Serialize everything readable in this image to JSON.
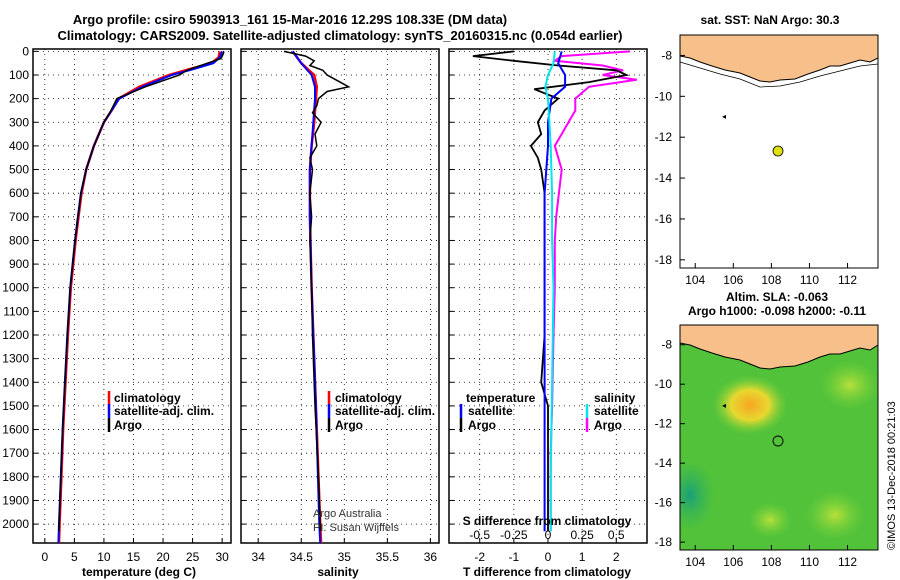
{
  "title": {
    "line1": "Argo profile: csiro 5903913_161 15-Mar-2016 12.29S 108.33E (DM data)",
    "line2": "Climatology: CARS2009. Satellite-adjusted climatology: synTS_20160315.nc (0.054d earlier)"
  },
  "colors": {
    "climatology": "#ff0000",
    "satellite": "#0000ff",
    "argo": "#000000",
    "sat_salinity": "#00e5ee",
    "argo_salinity": "#ff00ff",
    "land": "#f7c08a"
  },
  "depth_ticks": [
    0,
    100,
    200,
    300,
    400,
    500,
    600,
    700,
    800,
    900,
    1000,
    1100,
    1200,
    1300,
    1400,
    1500,
    1600,
    1700,
    1800,
    1900,
    2000
  ],
  "temp_panel": {
    "xlabel": "temperature (deg C)",
    "xticks": [
      0,
      5,
      10,
      15,
      20,
      25,
      30
    ],
    "legend": [
      "climatology",
      "satellite-adj. clim.",
      "Argo"
    ]
  },
  "sal_panel": {
    "xlabel": "salinity",
    "xticks": [
      "34",
      "34.5",
      "35",
      "35.5",
      "36"
    ],
    "legend": [
      "climatology",
      "satellite-adj. clim.",
      "Argo"
    ],
    "credit1": "Argo Australia",
    "credit2": "PI: Susan Wijffels"
  },
  "diff_panel": {
    "xlabel": "T difference from climatology",
    "xticks": [
      "-2",
      "-1",
      "0",
      "1",
      "2"
    ],
    "s_label": "S difference from climatology",
    "s_ticks": [
      "-0.5",
      "-0.25",
      "0",
      "0.25",
      "0.5"
    ],
    "legend_t_title": "temperature",
    "legend_s_title": "salinity",
    "legend_t": [
      "satellite",
      "Argo"
    ],
    "legend_s": [
      "satellite",
      "Argo"
    ]
  },
  "map1": {
    "title": "sat. SST: NaN Argo: 30.3",
    "yticks": [
      "-8",
      "-10",
      "-12",
      "-14",
      "-16",
      "-18"
    ],
    "xticks": [
      "104",
      "106",
      "108",
      "110",
      "112"
    ]
  },
  "map2": {
    "title1": "Altim. SLA: -0.063",
    "title2": "Argo h1000: -0.098 h2000: -0.11",
    "yticks": [
      "-8",
      "-10",
      "-12",
      "-14",
      "-16",
      "-18"
    ],
    "xticks": [
      "104",
      "106",
      "108",
      "110",
      "112"
    ]
  },
  "side_stamp": "©IMOS 13-Dec-2018 00:21:03",
  "chart_data": [
    {
      "type": "line",
      "name": "temperature profile",
      "x_unit": "deg C",
      "ylim": [
        2080,
        -10
      ],
      "xlim": [
        -2,
        31.5
      ],
      "series": [
        {
          "name": "climatology",
          "depth": [
            0,
            25,
            50,
            75,
            100,
            150,
            200,
            250,
            300,
            400,
            500,
            600,
            700,
            800,
            900,
            1000,
            1200,
            1400,
            1600,
            1800,
            2000,
            2080
          ],
          "values": [
            29.6,
            29.4,
            28.2,
            24.5,
            21.0,
            16.0,
            12.5,
            11.3,
            10.0,
            8.3,
            7.0,
            6.2,
            5.7,
            5.2,
            4.8,
            4.4,
            3.9,
            3.5,
            3.1,
            2.8,
            2.5,
            2.4
          ]
        },
        {
          "name": "satellite-adj. clim.",
          "depth": [
            0,
            25,
            50,
            75,
            100,
            150,
            200,
            250,
            300,
            400,
            500,
            600,
            700,
            800,
            900,
            1000,
            1200,
            1400,
            1600,
            1800,
            2000,
            2080
          ],
          "values": [
            30.0,
            29.6,
            28.5,
            25.2,
            21.5,
            16.5,
            12.6,
            11.3,
            10.0,
            8.3,
            7.0,
            6.1,
            5.6,
            5.1,
            4.7,
            4.3,
            3.8,
            3.4,
            3.0,
            2.7,
            2.4,
            2.3
          ]
        },
        {
          "name": "Argo",
          "depth": [
            0,
            10,
            30,
            50,
            80,
            100,
            150,
            200,
            250,
            300,
            400,
            500,
            600,
            700,
            800,
            900,
            1000,
            1200,
            1400,
            1600,
            1800,
            2000,
            2030
          ],
          "values": [
            30.3,
            30.2,
            29.8,
            27.5,
            24.0,
            22.8,
            17.0,
            12.2,
            11.2,
            10.0,
            8.3,
            7.0,
            6.1,
            5.6,
            5.1,
            4.7,
            4.3,
            3.8,
            3.4,
            3.0,
            2.7,
            2.4,
            2.4
          ]
        }
      ]
    },
    {
      "type": "line",
      "name": "salinity profile",
      "ylim": [
        2080,
        -10
      ],
      "xlim": [
        33.8,
        36.1
      ],
      "series": [
        {
          "name": "climatology",
          "depth": [
            0,
            50,
            100,
            150,
            200,
            300,
            400,
            500,
            700,
            1000,
            1500,
            2000,
            2080
          ],
          "values": [
            34.4,
            34.5,
            34.65,
            34.68,
            34.67,
            34.65,
            34.62,
            34.6,
            34.6,
            34.62,
            34.67,
            34.72,
            34.73
          ]
        },
        {
          "name": "satellite-adj. clim.",
          "depth": [
            0,
            50,
            100,
            150,
            200,
            300,
            400,
            500,
            700,
            1000,
            1500,
            2000,
            2080
          ],
          "values": [
            34.4,
            34.5,
            34.62,
            34.66,
            34.66,
            34.64,
            34.62,
            34.6,
            34.6,
            34.62,
            34.67,
            34.71,
            34.72
          ]
        },
        {
          "name": "Argo",
          "depth": [
            0,
            20,
            40,
            60,
            80,
            100,
            120,
            150,
            170,
            200,
            230,
            260,
            300,
            350,
            400,
            450,
            500,
            600,
            700,
            800,
            1000,
            1200,
            1500,
            1800,
            2000,
            2030
          ],
          "values": [
            34.3,
            34.55,
            34.65,
            34.6,
            34.75,
            34.8,
            34.9,
            35.05,
            34.8,
            34.7,
            34.68,
            34.63,
            34.73,
            34.66,
            34.68,
            34.6,
            34.63,
            34.6,
            34.62,
            34.6,
            34.62,
            34.63,
            34.66,
            34.7,
            34.72,
            34.72
          ]
        }
      ]
    },
    {
      "type": "line",
      "name": "difference from climatology",
      "ylim": [
        2080,
        -10
      ],
      "xlim_T": [
        -2.9,
        2.9
      ],
      "xlim_S": [
        -0.725,
        0.725
      ],
      "series": [
        {
          "name": "temperature satellite",
          "depth": [
            0,
            50,
            100,
            150,
            200,
            300,
            400,
            600,
            800,
            1000,
            1400,
            1800,
            2030
          ],
          "values": [
            0.4,
            0.3,
            0.5,
            0.5,
            0.1,
            0.0,
            0.0,
            -0.1,
            -0.1,
            -0.1,
            -0.1,
            -0.1,
            -0.1
          ]
        },
        {
          "name": "temperature Argo",
          "depth": [
            0,
            20,
            40,
            60,
            80,
            100,
            130,
            160,
            200,
            250,
            300,
            350,
            400,
            450,
            500,
            600,
            700,
            800,
            1000,
            1200,
            1400,
            1450,
            1500,
            1600,
            1800,
            2030
          ],
          "values": [
            -1.0,
            -2.2,
            -1.0,
            0.3,
            2.0,
            2.3,
            1.2,
            -0.4,
            0.3,
            -0.1,
            -0.3,
            -0.2,
            -0.5,
            -0.3,
            -0.2,
            -0.1,
            -0.1,
            -0.1,
            -0.1,
            -0.1,
            -0.2,
            -0.1,
            0.0,
            0.0,
            0.0,
            0.0
          ]
        },
        {
          "name": "salinity satellite",
          "depth": [
            0,
            50,
            100,
            150,
            200,
            300,
            400,
            600,
            800,
            1000,
            1400,
            1800,
            2030
          ],
          "values": [
            0.05,
            0.04,
            0.0,
            -0.02,
            0.0,
            0.01,
            0.02,
            0.03,
            0.03,
            0.04,
            0.03,
            0.02,
            0.02
          ]
        },
        {
          "name": "salinity Argo",
          "depth": [
            0,
            20,
            40,
            60,
            80,
            100,
            120,
            150,
            200,
            250,
            300,
            400,
            500,
            600,
            700,
            800,
            1000,
            1200,
            1500,
            1700,
            1900,
            2030
          ],
          "values": [
            0.6,
            0.1,
            0.05,
            0.4,
            0.55,
            0.4,
            0.65,
            0.3,
            0.2,
            0.2,
            0.15,
            0.05,
            0.1,
            0.08,
            0.06,
            0.05,
            0.05,
            0.04,
            0.03,
            0.02,
            0.02,
            0.02
          ]
        }
      ]
    }
  ]
}
